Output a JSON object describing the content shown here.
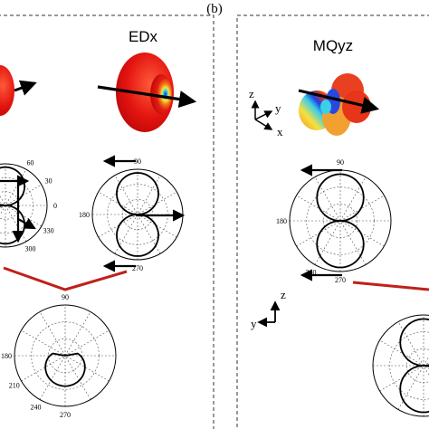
{
  "panel_label": "(b)",
  "panels": [
    {
      "id": "edx",
      "title": "EDx"
    },
    {
      "id": "mqyz",
      "title": "MQyz"
    }
  ],
  "axes_triad_top": {
    "z": "z",
    "y": "y",
    "x": "x"
  },
  "axes_triad_bottom": {
    "z": "z",
    "y": "y"
  },
  "polar_ticks": {
    "left_partial": [
      "60",
      "30",
      "0",
      "330",
      "300"
    ],
    "edx": [
      "90",
      "180",
      "270"
    ],
    "mqyz": [
      "90",
      "180",
      "240",
      "270"
    ],
    "bottom_left": [
      "90",
      "180",
      "210",
      "240",
      "270"
    ]
  },
  "colors": {
    "lobe_red": "#e01010",
    "curve": "#000000",
    "connector": "#c0201a",
    "frame_dash": "#333333"
  }
}
